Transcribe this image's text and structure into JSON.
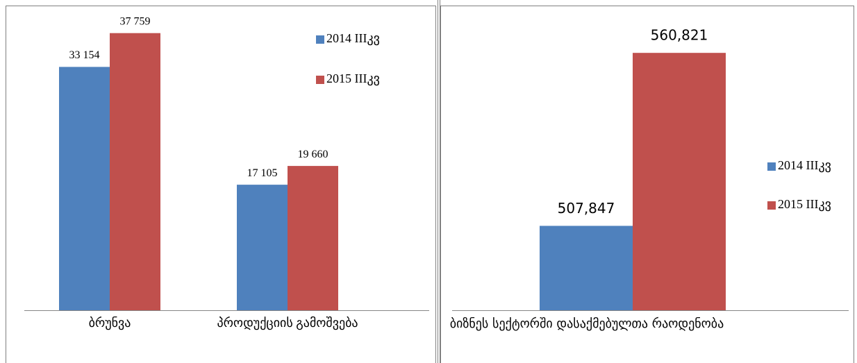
{
  "chart_data": [
    {
      "type": "bar",
      "categories": [
        "ბრუნვა",
        "პროდუქციის გამოშვება"
      ],
      "series": [
        {
          "name": "2014 IIIკვ",
          "color": "#4f81bd",
          "values": [
            33154,
            17105
          ],
          "value_labels": [
            "33 154",
            "17 105"
          ]
        },
        {
          "name": "2015 IIIკვ",
          "color": "#c0504d",
          "values": [
            37759,
            19660
          ],
          "value_labels": [
            "37 759",
            "19 660"
          ]
        }
      ],
      "ylim": [
        0,
        40000
      ],
      "legend": "right"
    },
    {
      "type": "bar",
      "categories": [
        "ბიზნეს სექტორში დასაქმებულთა რაოდენობა"
      ],
      "series": [
        {
          "name": "2014 IIIკვ",
          "color": "#4f81bd",
          "values": [
            507847
          ],
          "value_labels": [
            "507,847"
          ]
        },
        {
          "name": "2015 IIIკვ",
          "color": "#c0504d",
          "values": [
            560821
          ],
          "value_labels": [
            "560,821"
          ]
        }
      ],
      "ylim": [
        482000,
        570000
      ],
      "legend": "right"
    }
  ]
}
